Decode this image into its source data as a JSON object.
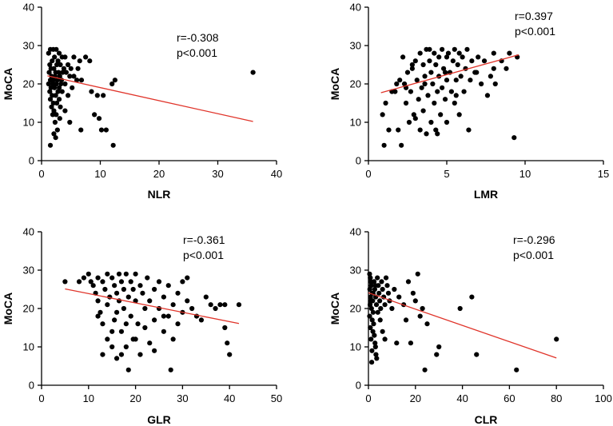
{
  "figure": {
    "colors": {
      "points": "#000000",
      "axes": "#000000",
      "fit_line": "#e0342a"
    }
  },
  "chart_data": [
    {
      "type": "scatter",
      "panel": "top-left",
      "xlabel": "NLR",
      "ylabel": "MoCA",
      "xlim": [
        0,
        40
      ],
      "ylim": [
        0,
        40
      ],
      "xticks": [
        0,
        10,
        20,
        30,
        40
      ],
      "yticks": [
        0,
        10,
        20,
        30,
        40
      ],
      "annotations": [
        "r=-0.308",
        "p<0.001"
      ],
      "fit_line": [
        [
          1,
          22.1
        ],
        [
          36,
          10.2
        ]
      ],
      "points": [
        [
          1.5,
          29
        ],
        [
          2,
          29
        ],
        [
          2.5,
          29
        ],
        [
          3,
          28
        ],
        [
          1.2,
          28
        ],
        [
          3.5,
          27
        ],
        [
          4,
          27
        ],
        [
          2.2,
          27
        ],
        [
          1.8,
          26
        ],
        [
          2.8,
          26
        ],
        [
          1.4,
          25
        ],
        [
          2.6,
          25
        ],
        [
          3.2,
          25
        ],
        [
          4.5,
          25
        ],
        [
          1.6,
          24
        ],
        [
          2.1,
          24
        ],
        [
          3.8,
          24
        ],
        [
          5,
          24
        ],
        [
          1.3,
          23
        ],
        [
          2.4,
          23
        ],
        [
          2.9,
          23
        ],
        [
          3.6,
          23
        ],
        [
          4.2,
          23
        ],
        [
          1.7,
          22
        ],
        [
          2.3,
          22
        ],
        [
          3.1,
          22
        ],
        [
          4.8,
          22
        ],
        [
          5.5,
          22
        ],
        [
          1.5,
          21
        ],
        [
          2,
          21
        ],
        [
          2.7,
          21
        ],
        [
          3.4,
          21
        ],
        [
          6,
          21
        ],
        [
          1.2,
          20
        ],
        [
          1.9,
          20
        ],
        [
          2.5,
          20
        ],
        [
          3.3,
          20
        ],
        [
          4,
          20
        ],
        [
          1.6,
          19
        ],
        [
          2.2,
          19
        ],
        [
          3,
          19
        ],
        [
          5.2,
          19
        ],
        [
          1.4,
          18
        ],
        [
          2.8,
          18
        ],
        [
          3.5,
          18
        ],
        [
          1.8,
          17
        ],
        [
          2.4,
          17
        ],
        [
          4.5,
          17
        ],
        [
          1.5,
          16
        ],
        [
          3,
          16
        ],
        [
          2,
          15
        ],
        [
          2.6,
          15
        ],
        [
          1.7,
          14
        ],
        [
          3.2,
          14
        ],
        [
          2.1,
          13
        ],
        [
          4,
          13
        ],
        [
          1.9,
          12
        ],
        [
          2.5,
          12
        ],
        [
          3.1,
          11
        ],
        [
          2.3,
          10
        ],
        [
          4.8,
          10
        ],
        [
          2.7,
          8
        ],
        [
          2.1,
          7
        ],
        [
          2.4,
          6
        ],
        [
          1.5,
          4
        ],
        [
          5.5,
          27
        ],
        [
          6.5,
          26
        ],
        [
          6.2,
          24
        ],
        [
          6.8,
          21
        ],
        [
          7.5,
          27
        ],
        [
          8.2,
          26
        ],
        [
          8.5,
          18
        ],
        [
          9.5,
          17
        ],
        [
          9,
          12
        ],
        [
          9.8,
          11
        ],
        [
          10.5,
          17
        ],
        [
          10.2,
          8
        ],
        [
          11,
          8
        ],
        [
          6.7,
          8
        ],
        [
          12,
          20
        ],
        [
          12.5,
          21
        ],
        [
          12.2,
          4
        ],
        [
          36,
          23
        ]
      ]
    },
    {
      "type": "scatter",
      "panel": "top-right",
      "xlabel": "LMR",
      "ylabel": "MoCA",
      "xlim": [
        0,
        15
      ],
      "ylim": [
        0,
        40
      ],
      "xticks": [
        0,
        5,
        10,
        15
      ],
      "yticks": [
        0,
        10,
        20,
        30,
        40
      ],
      "annotations": [
        "r=0.397",
        "p<0.001"
      ],
      "fit_line": [
        [
          0.8,
          17.7
        ],
        [
          9.6,
          27.6
        ]
      ],
      "points": [
        [
          0.9,
          12
        ],
        [
          1,
          4
        ],
        [
          1.1,
          15
        ],
        [
          1.3,
          8
        ],
        [
          1.5,
          18
        ],
        [
          1.8,
          20
        ],
        [
          1.9,
          8
        ],
        [
          2.1,
          4
        ],
        [
          2,
          21
        ],
        [
          2.2,
          27
        ],
        [
          2.3,
          20
        ],
        [
          2.4,
          15
        ],
        [
          2.5,
          23
        ],
        [
          2.6,
          10
        ],
        [
          2.7,
          18
        ],
        [
          2.8,
          24
        ],
        [
          2.9,
          12
        ],
        [
          3,
          26
        ],
        [
          3,
          11
        ],
        [
          3.1,
          21
        ],
        [
          3.2,
          16
        ],
        [
          3.3,
          28
        ],
        [
          3.3,
          8
        ],
        [
          3.4,
          19
        ],
        [
          3.5,
          25
        ],
        [
          3.5,
          13
        ],
        [
          3.6,
          22
        ],
        [
          3.7,
          29
        ],
        [
          3.7,
          7
        ],
        [
          3.8,
          17
        ],
        [
          3.9,
          26
        ],
        [
          4,
          23
        ],
        [
          4,
          10
        ],
        [
          4.1,
          20
        ],
        [
          4.2,
          28
        ],
        [
          4.2,
          15
        ],
        [
          4.3,
          25
        ],
        [
          4.4,
          18
        ],
        [
          4.4,
          7
        ],
        [
          4.5,
          27
        ],
        [
          4.5,
          22
        ],
        [
          4.6,
          12
        ],
        [
          4.7,
          29
        ],
        [
          4.7,
          19
        ],
        [
          4.8,
          24
        ],
        [
          4.9,
          16
        ],
        [
          5,
          27
        ],
        [
          5,
          21
        ],
        [
          5,
          10
        ],
        [
          5.1,
          28
        ],
        [
          5.2,
          23
        ],
        [
          5.3,
          18
        ],
        [
          5.4,
          26
        ],
        [
          5.5,
          29
        ],
        [
          5.5,
          15
        ],
        [
          5.6,
          21
        ],
        [
          5.7,
          25
        ],
        [
          5.8,
          28
        ],
        [
          5.8,
          12
        ],
        [
          5.9,
          22
        ],
        [
          6,
          27
        ],
        [
          6.1,
          18
        ],
        [
          6.2,
          24
        ],
        [
          6.3,
          29
        ],
        [
          6.4,
          8
        ],
        [
          6.5,
          21
        ],
        [
          6.6,
          26
        ],
        [
          6.8,
          23
        ],
        [
          7,
          27
        ],
        [
          7.2,
          20
        ],
        [
          7.4,
          26
        ],
        [
          7.6,
          17
        ],
        [
          7.8,
          22
        ],
        [
          8,
          28
        ],
        [
          8,
          24
        ],
        [
          8.1,
          20
        ],
        [
          8.5,
          26
        ],
        [
          8.8,
          24
        ],
        [
          9,
          28
        ],
        [
          9.5,
          27
        ],
        [
          9.3,
          6
        ],
        [
          1.7,
          18
        ],
        [
          2.8,
          25
        ],
        [
          3.9,
          29
        ],
        [
          4.9,
          23
        ],
        [
          5.6,
          17
        ],
        [
          6.9,
          23
        ],
        [
          3.6,
          20
        ],
        [
          2.4,
          19
        ],
        [
          4.3,
          8
        ]
      ]
    },
    {
      "type": "scatter",
      "panel": "bottom-left",
      "xlabel": "GLR",
      "ylabel": "MoCA",
      "xlim": [
        0,
        50
      ],
      "ylim": [
        0,
        40
      ],
      "xticks": [
        0,
        10,
        20,
        30,
        40,
        50
      ],
      "yticks": [
        0,
        10,
        20,
        30,
        40
      ],
      "annotations": [
        "r=-0.361",
        "p<0.001"
      ],
      "fit_line": [
        [
          5,
          25.1
        ],
        [
          42,
          16.1
        ]
      ],
      "points": [
        [
          5,
          27
        ],
        [
          8,
          27
        ],
        [
          9,
          28
        ],
        [
          10,
          29
        ],
        [
          10.5,
          27
        ],
        [
          11,
          26
        ],
        [
          11.5,
          24
        ],
        [
          12,
          28
        ],
        [
          12,
          22
        ],
        [
          12.5,
          19
        ],
        [
          13,
          8
        ],
        [
          13,
          27
        ],
        [
          13.5,
          25
        ],
        [
          14,
          29
        ],
        [
          14,
          21
        ],
        [
          14.5,
          23
        ],
        [
          15,
          10
        ],
        [
          15,
          28
        ],
        [
          15.5,
          26
        ],
        [
          15.5,
          17
        ],
        [
          16,
          24
        ],
        [
          16,
          7
        ],
        [
          16.5,
          29
        ],
        [
          16.5,
          22
        ],
        [
          17,
          27
        ],
        [
          17,
          14
        ],
        [
          17.5,
          25
        ],
        [
          17.5,
          20
        ],
        [
          18,
          29
        ],
        [
          18,
          10
        ],
        [
          18.5,
          23
        ],
        [
          18.5,
          4
        ],
        [
          19,
          27
        ],
        [
          19,
          18
        ],
        [
          19.5,
          25
        ],
        [
          19.5,
          12
        ],
        [
          20,
          29
        ],
        [
          20,
          22
        ],
        [
          20.5,
          16
        ],
        [
          21,
          26
        ],
        [
          21,
          8
        ],
        [
          21.5,
          24
        ],
        [
          22,
          20
        ],
        [
          22.5,
          28
        ],
        [
          23,
          22
        ],
        [
          23,
          11
        ],
        [
          24,
          25
        ],
        [
          24,
          17
        ],
        [
          25,
          27
        ],
        [
          25,
          20
        ],
        [
          26,
          23
        ],
        [
          26,
          14
        ],
        [
          27,
          26
        ],
        [
          27,
          18
        ],
        [
          27.5,
          4
        ],
        [
          28,
          21
        ],
        [
          28,
          12
        ],
        [
          29,
          24
        ],
        [
          29,
          16
        ],
        [
          30,
          27
        ],
        [
          30,
          19
        ],
        [
          31,
          28
        ],
        [
          31,
          22
        ],
        [
          32,
          20
        ],
        [
          33,
          18
        ],
        [
          34,
          17
        ],
        [
          35,
          23
        ],
        [
          36,
          21
        ],
        [
          37,
          20
        ],
        [
          38,
          21
        ],
        [
          39,
          21
        ],
        [
          39,
          15
        ],
        [
          39.5,
          11
        ],
        [
          40,
          8
        ],
        [
          42,
          21
        ],
        [
          12,
          18
        ],
        [
          14,
          12
        ],
        [
          16,
          19
        ],
        [
          18,
          16
        ],
        [
          22,
          15
        ],
        [
          24,
          9
        ],
        [
          26,
          18
        ],
        [
          15,
          14
        ],
        [
          17,
          8
        ],
        [
          13,
          16
        ],
        [
          20,
          12
        ]
      ]
    },
    {
      "type": "scatter",
      "panel": "bottom-right",
      "xlabel": "CLR",
      "ylabel": "MoCA",
      "xlim": [
        0,
        100
      ],
      "ylim": [
        0,
        40
      ],
      "xticks": [
        0,
        20,
        40,
        60,
        80,
        100
      ],
      "yticks": [
        0,
        10,
        20,
        30,
        40
      ],
      "annotations": [
        "r=-0.296",
        "p<0.001"
      ],
      "fit_line": [
        [
          0,
          24.1
        ],
        [
          80,
          7.1
        ]
      ],
      "points": [
        [
          0.5,
          29
        ],
        [
          0.8,
          28
        ],
        [
          1,
          27
        ],
        [
          1.2,
          26
        ],
        [
          0.6,
          25
        ],
        [
          1.5,
          24
        ],
        [
          0.9,
          23
        ],
        [
          1.8,
          22
        ],
        [
          0.7,
          21
        ],
        [
          1.3,
          20
        ],
        [
          2,
          19
        ],
        [
          0.5,
          18
        ],
        [
          1.6,
          17
        ],
        [
          2.2,
          16
        ],
        [
          0.8,
          15
        ],
        [
          1.9,
          14
        ],
        [
          2.5,
          13
        ],
        [
          1.1,
          12
        ],
        [
          2.8,
          11
        ],
        [
          3,
          10
        ],
        [
          3.2,
          8
        ],
        [
          3.5,
          7
        ],
        [
          1.4,
          6
        ],
        [
          2.4,
          27
        ],
        [
          2.7,
          25
        ],
        [
          3.1,
          23
        ],
        [
          3.4,
          21
        ],
        [
          3.8,
          28
        ],
        [
          4.2,
          26
        ],
        [
          4.5,
          24
        ],
        [
          4.8,
          22
        ],
        [
          5.2,
          20
        ],
        [
          5.6,
          27
        ],
        [
          6,
          25
        ],
        [
          6.5,
          23
        ],
        [
          7,
          21
        ],
        [
          7.5,
          28
        ],
        [
          8,
          26
        ],
        [
          8.5,
          24
        ],
        [
          9,
          22
        ],
        [
          10,
          20
        ],
        [
          11,
          25
        ],
        [
          12,
          11
        ],
        [
          13,
          23
        ],
        [
          15,
          21
        ],
        [
          16,
          17
        ],
        [
          17,
          27
        ],
        [
          18,
          11
        ],
        [
          19,
          24
        ],
        [
          20,
          22
        ],
        [
          21,
          29
        ],
        [
          22,
          18
        ],
        [
          23,
          20
        ],
        [
          24,
          4
        ],
        [
          25,
          16
        ],
        [
          29,
          8
        ],
        [
          30,
          10
        ],
        [
          39,
          20
        ],
        [
          44,
          23
        ],
        [
          46,
          8
        ],
        [
          63,
          4
        ],
        [
          80,
          12
        ],
        [
          1,
          22
        ],
        [
          2,
          24
        ],
        [
          3,
          26
        ],
        [
          4,
          19
        ],
        [
          5,
          17
        ],
        [
          6,
          14
        ],
        [
          7,
          12
        ],
        [
          1.5,
          9
        ]
      ]
    }
  ]
}
